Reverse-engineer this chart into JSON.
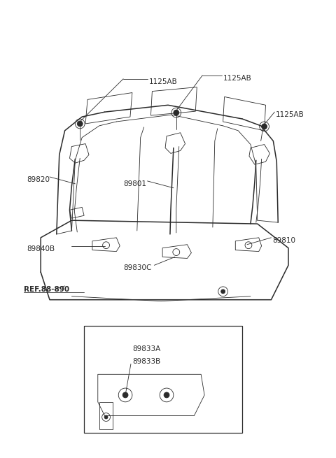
{
  "bg_color": "#ffffff",
  "line_color": "#2a2a2a",
  "figsize": [
    4.8,
    6.55
  ],
  "dpi": 100,
  "labels": {
    "1125AB_left": "1125AB",
    "1125AB_mid": "1125AB",
    "1125AB_right": "1125AB",
    "89820": "89820",
    "89801": "89801",
    "89840B": "89840B",
    "89830C": "89830C",
    "89810": "89810",
    "ref": "REF.88-890",
    "89833A": "89833A",
    "89833B": "89833B"
  }
}
